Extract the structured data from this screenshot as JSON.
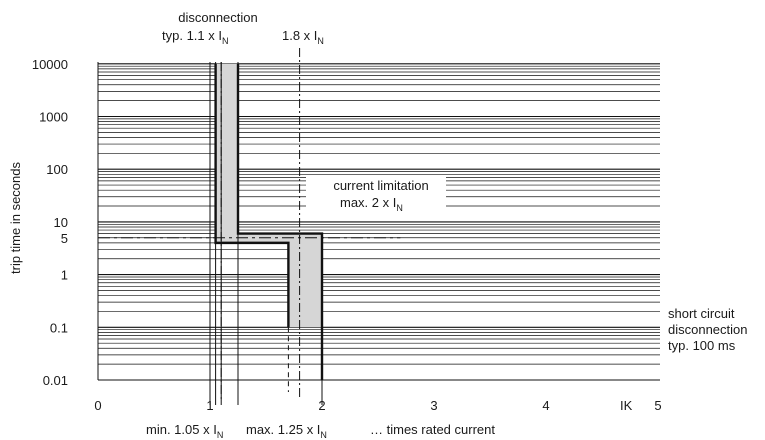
{
  "chart_data": {
    "type": "line",
    "ylabel": "trip time in seconds",
    "y_scale": "log",
    "ylim": [
      0.01,
      10000
    ],
    "yticks": [
      {
        "value": 10000,
        "label": "10000"
      },
      {
        "value": 1000,
        "label": "1000"
      },
      {
        "value": 100,
        "label": "100"
      },
      {
        "value": 10,
        "label": "10"
      },
      {
        "value": 5,
        "label": "5"
      },
      {
        "value": 1,
        "label": "1"
      },
      {
        "value": 0.1,
        "label": "0.1"
      },
      {
        "value": 0.01,
        "label": "0.01"
      }
    ],
    "xticks": [
      {
        "value": 0,
        "label": "0"
      },
      {
        "value": 1,
        "label": "1"
      },
      {
        "value": 2,
        "label": "2"
      },
      {
        "value": 3,
        "label": "3"
      },
      {
        "value": 4,
        "label": "4"
      },
      {
        "value": 5,
        "label": "5"
      }
    ],
    "x_axis_unit": "IK",
    "grid": true,
    "series": [
      {
        "values": [
          [
            1.05,
            10000
          ],
          [
            1.05,
            4
          ],
          [
            1.7,
            4
          ],
          [
            1.7,
            0.1
          ]
        ]
      },
      {
        "values": [
          [
            1.25,
            10000
          ],
          [
            1.25,
            6
          ],
          [
            2.0,
            6
          ],
          [
            2.0,
            0.01
          ]
        ]
      }
    ],
    "reference_lines": {
      "vertical_solid": [
        1.0,
        1.1,
        1.25
      ],
      "vertical_dashed": [
        1.1,
        1.8,
        1.7
      ],
      "horizontal_dashed": 5
    },
    "annotations": {
      "disconnection": [
        "disconnection",
        "typ. 1.1 x I",
        "N"
      ],
      "one_point_eight": [
        "1.8 x I",
        "N"
      ],
      "current_limitation": [
        "current limitation",
        "max. 2 x I",
        "N"
      ],
      "short_circuit": [
        "short circuit",
        "disconnection",
        "typ. 100 ms"
      ],
      "min_label": [
        "min. 1.05 x I",
        "N"
      ],
      "max_label": [
        "max. 1.25 x I",
        "N"
      ],
      "times_rated": "… times rated current"
    }
  }
}
